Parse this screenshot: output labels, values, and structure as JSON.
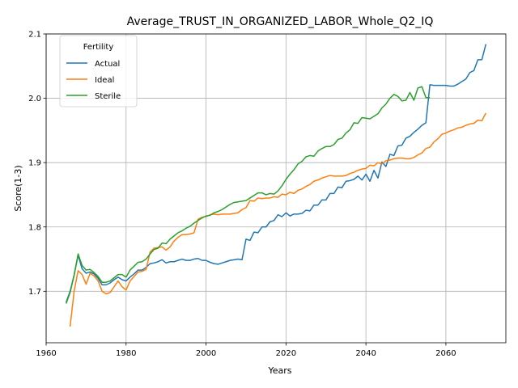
{
  "chart_data": {
    "type": "line",
    "title": "Average_TRUST_IN_ORGANIZED_LABOR_Whole_Q2_IQ",
    "xlabel": "Years",
    "ylabel": "Score(1-3)",
    "xlim": [
      1960,
      2075
    ],
    "ylim": [
      1.62,
      2.1
    ],
    "xticks": [
      1960,
      1980,
      2000,
      2020,
      2040,
      2060
    ],
    "yticks": [
      1.7,
      1.8,
      1.9,
      2.0,
      2.1
    ],
    "grid": true,
    "legend": {
      "title": "Fertility",
      "position": "upper-left"
    },
    "series": [
      {
        "name": "Actual",
        "color": "#1f77b4",
        "points": [
          [
            1965,
            1.683
          ],
          [
            1966,
            1.7
          ],
          [
            1967,
            1.725
          ],
          [
            1968,
            1.756
          ],
          [
            1969,
            1.735
          ],
          [
            1970,
            1.728
          ],
          [
            1971,
            1.73
          ],
          [
            1972,
            1.727
          ],
          [
            1973,
            1.72
          ],
          [
            1974,
            1.71
          ],
          [
            1975,
            1.71
          ],
          [
            1976,
            1.713
          ],
          [
            1977,
            1.718
          ],
          [
            1978,
            1.722
          ],
          [
            1979,
            1.718
          ],
          [
            1980,
            1.716
          ],
          [
            1981,
            1.722
          ],
          [
            1982,
            1.727
          ],
          [
            1983,
            1.733
          ],
          [
            1984,
            1.733
          ],
          [
            1985,
            1.737
          ],
          [
            1986,
            1.743
          ],
          [
            1987,
            1.744
          ],
          [
            1988,
            1.746
          ],
          [
            1989,
            1.749
          ],
          [
            1990,
            1.744
          ],
          [
            1991,
            1.746
          ],
          [
            1992,
            1.746
          ],
          [
            1993,
            1.748
          ],
          [
            1994,
            1.75
          ],
          [
            1995,
            1.748
          ],
          [
            1996,
            1.748
          ],
          [
            1997,
            1.75
          ],
          [
            1998,
            1.751
          ],
          [
            1999,
            1.748
          ],
          [
            2000,
            1.748
          ],
          [
            2001,
            1.745
          ],
          [
            2002,
            1.743
          ],
          [
            2003,
            1.742
          ],
          [
            2004,
            1.744
          ],
          [
            2005,
            1.746
          ],
          [
            2006,
            1.748
          ],
          [
            2007,
            1.749
          ],
          [
            2008,
            1.75
          ],
          [
            2009,
            1.749
          ],
          [
            2010,
            1.781
          ],
          [
            2011,
            1.779
          ],
          [
            2012,
            1.792
          ],
          [
            2013,
            1.791
          ],
          [
            2014,
            1.8
          ],
          [
            2015,
            1.8
          ],
          [
            2016,
            1.808
          ],
          [
            2017,
            1.81
          ],
          [
            2018,
            1.819
          ],
          [
            2019,
            1.816
          ],
          [
            2020,
            1.822
          ],
          [
            2021,
            1.817
          ],
          [
            2022,
            1.82
          ],
          [
            2023,
            1.82
          ],
          [
            2024,
            1.821
          ],
          [
            2025,
            1.826
          ],
          [
            2026,
            1.825
          ],
          [
            2027,
            1.834
          ],
          [
            2028,
            1.834
          ],
          [
            2029,
            1.842
          ],
          [
            2030,
            1.842
          ],
          [
            2031,
            1.852
          ],
          [
            2032,
            1.852
          ],
          [
            2033,
            1.862
          ],
          [
            2034,
            1.861
          ],
          [
            2035,
            1.871
          ],
          [
            2036,
            1.872
          ],
          [
            2037,
            1.874
          ],
          [
            2038,
            1.879
          ],
          [
            2039,
            1.873
          ],
          [
            2040,
            1.882
          ],
          [
            2041,
            1.871
          ],
          [
            2042,
            1.888
          ],
          [
            2043,
            1.876
          ],
          [
            2044,
            1.901
          ],
          [
            2045,
            1.894
          ],
          [
            2046,
            1.913
          ],
          [
            2047,
            1.911
          ],
          [
            2048,
            1.926
          ],
          [
            2049,
            1.927
          ],
          [
            2050,
            1.938
          ],
          [
            2051,
            1.941
          ],
          [
            2052,
            1.947
          ],
          [
            2053,
            1.952
          ],
          [
            2054,
            1.958
          ],
          [
            2055,
            1.962
          ],
          [
            2056,
            2.021
          ],
          [
            2057,
            2.02
          ],
          [
            2058,
            2.02
          ],
          [
            2059,
            2.02
          ],
          [
            2060,
            2.02
          ],
          [
            2061,
            2.019
          ],
          [
            2062,
            2.019
          ],
          [
            2063,
            2.022
          ],
          [
            2064,
            2.026
          ],
          [
            2065,
            2.03
          ],
          [
            2066,
            2.04
          ],
          [
            2067,
            2.043
          ],
          [
            2068,
            2.06
          ],
          [
            2069,
            2.06
          ],
          [
            2070,
            2.084
          ]
        ]
      },
      {
        "name": "Ideal",
        "color": "#ff7f0e",
        "points": [
          [
            1966,
            1.645
          ],
          [
            1967,
            1.7
          ],
          [
            1968,
            1.732
          ],
          [
            1969,
            1.726
          ],
          [
            1970,
            1.711
          ],
          [
            1971,
            1.728
          ],
          [
            1972,
            1.724
          ],
          [
            1973,
            1.716
          ],
          [
            1974,
            1.7
          ],
          [
            1975,
            1.696
          ],
          [
            1976,
            1.698
          ],
          [
            1977,
            1.707
          ],
          [
            1978,
            1.716
          ],
          [
            1979,
            1.707
          ],
          [
            1980,
            1.702
          ],
          [
            1981,
            1.716
          ],
          [
            1982,
            1.723
          ],
          [
            1983,
            1.73
          ],
          [
            1984,
            1.731
          ],
          [
            1985,
            1.734
          ],
          [
            1986,
            1.761
          ],
          [
            1987,
            1.767
          ],
          [
            1988,
            1.768
          ],
          [
            1989,
            1.769
          ],
          [
            1990,
            1.764
          ],
          [
            1991,
            1.769
          ],
          [
            1992,
            1.778
          ],
          [
            1993,
            1.784
          ],
          [
            1994,
            1.788
          ],
          [
            1995,
            1.788
          ],
          [
            1996,
            1.789
          ],
          [
            1997,
            1.791
          ],
          [
            1998,
            1.812
          ],
          [
            1999,
            1.815
          ],
          [
            2000,
            1.816
          ],
          [
            2001,
            1.819
          ],
          [
            2002,
            1.82
          ],
          [
            2003,
            1.819
          ],
          [
            2004,
            1.82
          ],
          [
            2005,
            1.82
          ],
          [
            2006,
            1.82
          ],
          [
            2007,
            1.821
          ],
          [
            2008,
            1.822
          ],
          [
            2009,
            1.827
          ],
          [
            2010,
            1.83
          ],
          [
            2011,
            1.841
          ],
          [
            2012,
            1.84
          ],
          [
            2013,
            1.845
          ],
          [
            2014,
            1.844
          ],
          [
            2015,
            1.845
          ],
          [
            2016,
            1.845
          ],
          [
            2017,
            1.847
          ],
          [
            2018,
            1.846
          ],
          [
            2019,
            1.851
          ],
          [
            2020,
            1.85
          ],
          [
            2021,
            1.854
          ],
          [
            2022,
            1.852
          ],
          [
            2023,
            1.857
          ],
          [
            2024,
            1.859
          ],
          [
            2025,
            1.863
          ],
          [
            2026,
            1.866
          ],
          [
            2027,
            1.871
          ],
          [
            2028,
            1.873
          ],
          [
            2029,
            1.876
          ],
          [
            2030,
            1.878
          ],
          [
            2031,
            1.88
          ],
          [
            2032,
            1.879
          ],
          [
            2033,
            1.879
          ],
          [
            2034,
            1.879
          ],
          [
            2035,
            1.88
          ],
          [
            2036,
            1.883
          ],
          [
            2037,
            1.885
          ],
          [
            2038,
            1.888
          ],
          [
            2039,
            1.89
          ],
          [
            2040,
            1.891
          ],
          [
            2041,
            1.896
          ],
          [
            2042,
            1.895
          ],
          [
            2043,
            1.9
          ],
          [
            2044,
            1.898
          ],
          [
            2045,
            1.903
          ],
          [
            2046,
            1.904
          ],
          [
            2047,
            1.906
          ],
          [
            2048,
            1.907
          ],
          [
            2049,
            1.907
          ],
          [
            2050,
            1.906
          ],
          [
            2051,
            1.906
          ],
          [
            2052,
            1.908
          ],
          [
            2053,
            1.912
          ],
          [
            2054,
            1.915
          ],
          [
            2055,
            1.922
          ],
          [
            2056,
            1.924
          ],
          [
            2057,
            1.932
          ],
          [
            2058,
            1.937
          ],
          [
            2059,
            1.944
          ],
          [
            2060,
            1.946
          ],
          [
            2061,
            1.949
          ],
          [
            2062,
            1.951
          ],
          [
            2063,
            1.954
          ],
          [
            2064,
            1.955
          ],
          [
            2065,
            1.958
          ],
          [
            2066,
            1.96
          ],
          [
            2067,
            1.961
          ],
          [
            2068,
            1.966
          ],
          [
            2069,
            1.965
          ],
          [
            2070,
            1.977
          ]
        ]
      },
      {
        "name": "Sterile",
        "color": "#2ca02c",
        "points": [
          [
            1965,
            1.681
          ],
          [
            1966,
            1.698
          ],
          [
            1967,
            1.725
          ],
          [
            1968,
            1.758
          ],
          [
            1969,
            1.74
          ],
          [
            1970,
            1.733
          ],
          [
            1971,
            1.734
          ],
          [
            1972,
            1.729
          ],
          [
            1973,
            1.723
          ],
          [
            1974,
            1.714
          ],
          [
            1975,
            1.714
          ],
          [
            1976,
            1.716
          ],
          [
            1977,
            1.721
          ],
          [
            1978,
            1.726
          ],
          [
            1979,
            1.726
          ],
          [
            1980,
            1.722
          ],
          [
            1981,
            1.733
          ],
          [
            1982,
            1.739
          ],
          [
            1983,
            1.745
          ],
          [
            1984,
            1.746
          ],
          [
            1985,
            1.75
          ],
          [
            1986,
            1.758
          ],
          [
            1987,
            1.765
          ],
          [
            1988,
            1.767
          ],
          [
            1989,
            1.775
          ],
          [
            1990,
            1.774
          ],
          [
            1991,
            1.781
          ],
          [
            1992,
            1.786
          ],
          [
            1993,
            1.791
          ],
          [
            1994,
            1.794
          ],
          [
            1995,
            1.798
          ],
          [
            1996,
            1.801
          ],
          [
            1997,
            1.806
          ],
          [
            1998,
            1.81
          ],
          [
            1999,
            1.814
          ],
          [
            2000,
            1.817
          ],
          [
            2001,
            1.818
          ],
          [
            2002,
            1.822
          ],
          [
            2003,
            1.824
          ],
          [
            2004,
            1.827
          ],
          [
            2005,
            1.831
          ],
          [
            2006,
            1.835
          ],
          [
            2007,
            1.838
          ],
          [
            2008,
            1.839
          ],
          [
            2009,
            1.84
          ],
          [
            2010,
            1.841
          ],
          [
            2011,
            1.845
          ],
          [
            2012,
            1.849
          ],
          [
            2013,
            1.853
          ],
          [
            2014,
            1.853
          ],
          [
            2015,
            1.85
          ],
          [
            2016,
            1.852
          ],
          [
            2017,
            1.851
          ],
          [
            2018,
            1.856
          ],
          [
            2019,
            1.864
          ],
          [
            2020,
            1.874
          ],
          [
            2021,
            1.882
          ],
          [
            2022,
            1.889
          ],
          [
            2023,
            1.898
          ],
          [
            2024,
            1.902
          ],
          [
            2025,
            1.909
          ],
          [
            2026,
            1.911
          ],
          [
            2027,
            1.91
          ],
          [
            2028,
            1.918
          ],
          [
            2029,
            1.922
          ],
          [
            2030,
            1.925
          ],
          [
            2031,
            1.925
          ],
          [
            2032,
            1.928
          ],
          [
            2033,
            1.936
          ],
          [
            2034,
            1.938
          ],
          [
            2035,
            1.946
          ],
          [
            2036,
            1.951
          ],
          [
            2037,
            1.962
          ],
          [
            2038,
            1.961
          ],
          [
            2039,
            1.97
          ],
          [
            2040,
            1.969
          ],
          [
            2041,
            1.968
          ],
          [
            2042,
            1.972
          ],
          [
            2043,
            1.976
          ],
          [
            2044,
            1.985
          ],
          [
            2045,
            1.991
          ],
          [
            2046,
            2.0
          ],
          [
            2047,
            2.006
          ],
          [
            2048,
            2.003
          ],
          [
            2049,
            1.996
          ],
          [
            2050,
            1.997
          ],
          [
            2051,
            2.009
          ],
          [
            2052,
            1.997
          ],
          [
            2053,
            2.016
          ],
          [
            2054,
            2.018
          ],
          [
            2055,
            2.001
          ],
          [
            2056,
            2.001
          ]
        ]
      }
    ]
  }
}
